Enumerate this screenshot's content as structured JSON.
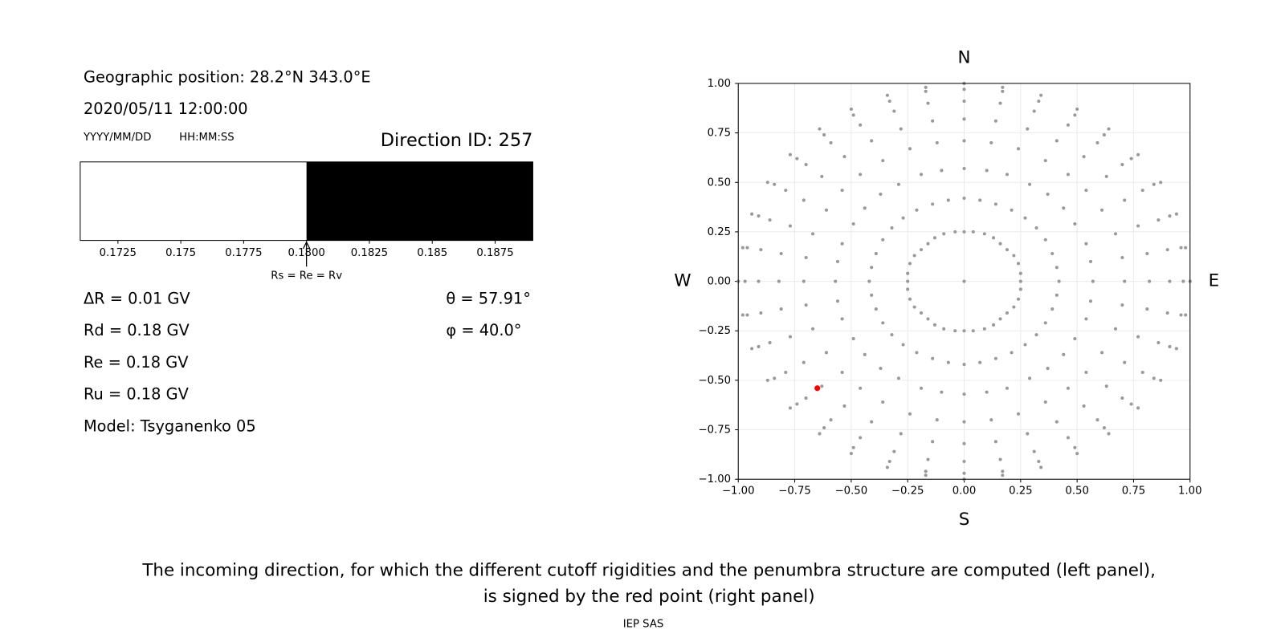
{
  "info": {
    "position": "Geographic position: 28.2°N 343.0°E",
    "datetime": "2020/05/11 12:00:00",
    "date_format": "YYYY/MM/DD",
    "time_format": "HH:MM:SS",
    "direction": "Direction ID: 257",
    "rigidities": [
      "ΔR = 0.01 GV",
      "Rd = 0.18 GV",
      "Re = 0.18 GV",
      "Ru = 0.18 GV",
      "Model: Tsyganenko 05"
    ],
    "angles": [
      "θ = 57.91°",
      "φ = 40.0°"
    ]
  },
  "chart_data": [
    {
      "type": "penumbra",
      "xlim": [
        0.171,
        0.189
      ],
      "xticks": [
        0.1725,
        0.175,
        0.1775,
        {
          "value": 0.18,
          "label": "0.1800"
        },
        0.1825,
        0.185,
        0.1875
      ],
      "segments": [
        {
          "start": 0.171,
          "end": 0.18,
          "color": "#ffffff"
        },
        {
          "start": 0.18,
          "end": 0.189,
          "color": "#000000"
        }
      ],
      "annotation": {
        "text": "Rs = Re = Rv",
        "x": 0.18
      }
    },
    {
      "type": "scatter",
      "xlim": [
        -1,
        1
      ],
      "ylim": [
        -1,
        1
      ],
      "xticks": [
        {
          "value": -1,
          "label": "−1.00"
        },
        {
          "value": -0.75,
          "label": "−0.75"
        },
        {
          "value": -0.5,
          "label": "−0.50"
        },
        {
          "value": -0.25,
          "label": "−0.25"
        },
        {
          "value": 0,
          "label": "0.00"
        },
        {
          "value": 0.25,
          "label": "0.25"
        },
        {
          "value": 0.5,
          "label": "0.50"
        },
        {
          "value": 0.75,
          "label": "0.75"
        },
        {
          "value": 1,
          "label": "1.00"
        }
      ],
      "yticks": [
        {
          "value": -1,
          "label": "−1.00"
        },
        {
          "value": -0.75,
          "label": "−0.75"
        },
        {
          "value": -0.5,
          "label": "−0.50"
        },
        {
          "value": -0.25,
          "label": "−0.25"
        },
        {
          "value": 0,
          "label": "0.00"
        },
        {
          "value": 0.25,
          "label": "0.25"
        },
        {
          "value": 0.5,
          "label": "0.50"
        },
        {
          "value": 0.75,
          "label": "0.75"
        },
        {
          "value": 1,
          "label": "1.00"
        }
      ],
      "grid": true,
      "compass": {
        "top": "N",
        "bottom": "S",
        "left": "W",
        "right": "E"
      },
      "series": [
        {
          "color": "#999999",
          "x": [
            0.25,
            0.42,
            0.57,
            0.71,
            0.82,
            0.91,
            0.97,
            1,
            0.25,
            0.41,
            0.56,
            0.7,
            0.81,
            0.9,
            0.96,
            0.98,
            0.24,
            0.39,
            0.54,
            0.67,
            0.77,
            0.86,
            0.91,
            0.94,
            0.22,
            0.36,
            0.49,
            0.61,
            0.71,
            0.79,
            0.84,
            0.87,
            0.19,
            0.32,
            0.44,
            0.54,
            0.63,
            0.7,
            0.74,
            0.77,
            0.16,
            0.27,
            0.37,
            0.46,
            0.53,
            0.59,
            0.62,
            0.64,
            0.13,
            0.21,
            0.29,
            0.36,
            0.41,
            0.46,
            0.49,
            0.5,
            0.09,
            0.14,
            0.19,
            0.24,
            0.28,
            0.31,
            0.33,
            0.34,
            0.04,
            0.07,
            0.1,
            0.12,
            0.14,
            0.16,
            0.17,
            0.17,
            0,
            0,
            0,
            0,
            0,
            0,
            0,
            0,
            -0.04,
            -0.07,
            -0.1,
            -0.12,
            -0.14,
            -0.16,
            -0.17,
            -0.17,
            -0.09,
            -0.14,
            -0.19,
            -0.24,
            -0.28,
            -0.31,
            -0.33,
            -0.34,
            -0.13,
            -0.21,
            -0.29,
            -0.36,
            -0.41,
            -0.46,
            -0.49,
            -0.5,
            -0.16,
            -0.27,
            -0.37,
            -0.46,
            -0.53,
            -0.59,
            -0.62,
            -0.64,
            -0.19,
            -0.32,
            -0.44,
            -0.54,
            -0.63,
            -0.7,
            -0.74,
            -0.77,
            -0.22,
            -0.36,
            -0.49,
            -0.61,
            -0.71,
            -0.79,
            -0.84,
            -0.87,
            -0.24,
            -0.39,
            -0.54,
            -0.67,
            -0.77,
            -0.86,
            -0.91,
            -0.94,
            -0.25,
            -0.41,
            -0.56,
            -0.7,
            -0.81,
            -0.9,
            -0.96,
            -0.98,
            -0.25,
            -0.42,
            -0.57,
            -0.71,
            -0.82,
            -0.91,
            -0.97,
            -1,
            -0.25,
            -0.41,
            -0.56,
            -0.7,
            -0.81,
            -0.9,
            -0.96,
            -0.98,
            -0.24,
            -0.39,
            -0.54,
            -0.67,
            -0.77,
            -0.86,
            -0.91,
            -0.94,
            -0.22,
            -0.36,
            -0.49,
            -0.61,
            -0.71,
            -0.79,
            -0.84,
            -0.87,
            -0.19,
            -0.32,
            -0.44,
            -0.54,
            -0.63,
            -0.7,
            -0.74,
            -0.77,
            -0.16,
            -0.27,
            -0.37,
            -0.46,
            -0.53,
            -0.59,
            -0.62,
            -0.64,
            -0.13,
            -0.21,
            -0.29,
            -0.36,
            -0.41,
            -0.46,
            -0.49,
            -0.5,
            -0.09,
            -0.14,
            -0.19,
            -0.24,
            -0.28,
            -0.31,
            -0.33,
            -0.34,
            -0.04,
            -0.07,
            -0.1,
            -0.12,
            -0.14,
            -0.16,
            -0.17,
            -0.17,
            0,
            0,
            0,
            0,
            0,
            0,
            0,
            0,
            0.04,
            0.07,
            0.1,
            0.12,
            0.14,
            0.16,
            0.17,
            0.17,
            0.09,
            0.14,
            0.19,
            0.24,
            0.28,
            0.31,
            0.33,
            0.34,
            0.13,
            0.21,
            0.29,
            0.36,
            0.41,
            0.46,
            0.49,
            0.5,
            0.16,
            0.27,
            0.37,
            0.46,
            0.53,
            0.59,
            0.62,
            0.64,
            0.19,
            0.32,
            0.44,
            0.54,
            0.63,
            0.7,
            0.74,
            0.77,
            0.22,
            0.36,
            0.49,
            0.61,
            0.71,
            0.79,
            0.84,
            0.87,
            0.24,
            0.39,
            0.54,
            0.67,
            0.77,
            0.86,
            0.91,
            0.94,
            0.25,
            0.41,
            0.56,
            0.7,
            0.81,
            0.9,
            0.96,
            0.98,
            0
          ],
          "y": [
            0,
            0,
            0,
            0,
            0,
            0,
            0,
            0,
            0.04,
            0.07,
            0.1,
            0.12,
            0.14,
            0.16,
            0.17,
            0.17,
            0.09,
            0.14,
            0.19,
            0.24,
            0.28,
            0.31,
            0.33,
            0.34,
            0.13,
            0.21,
            0.29,
            0.36,
            0.41,
            0.46,
            0.49,
            0.5,
            0.16,
            0.27,
            0.37,
            0.46,
            0.53,
            0.59,
            0.62,
            0.64,
            0.19,
            0.32,
            0.44,
            0.54,
            0.63,
            0.7,
            0.74,
            0.77,
            0.22,
            0.36,
            0.49,
            0.61,
            0.71,
            0.79,
            0.84,
            0.87,
            0.24,
            0.39,
            0.54,
            0.67,
            0.77,
            0.86,
            0.91,
            0.94,
            0.25,
            0.41,
            0.56,
            0.7,
            0.81,
            0.9,
            0.96,
            0.98,
            0.25,
            0.42,
            0.57,
            0.71,
            0.82,
            0.91,
            0.97,
            1,
            0.25,
            0.41,
            0.56,
            0.7,
            0.81,
            0.9,
            0.96,
            0.98,
            0.24,
            0.39,
            0.54,
            0.67,
            0.77,
            0.86,
            0.91,
            0.94,
            0.22,
            0.36,
            0.49,
            0.61,
            0.71,
            0.79,
            0.84,
            0.87,
            0.19,
            0.32,
            0.44,
            0.54,
            0.63,
            0.7,
            0.74,
            0.77,
            0.16,
            0.27,
            0.37,
            0.46,
            0.53,
            0.59,
            0.62,
            0.64,
            0.13,
            0.21,
            0.29,
            0.36,
            0.41,
            0.46,
            0.49,
            0.5,
            0.09,
            0.14,
            0.19,
            0.24,
            0.28,
            0.31,
            0.33,
            0.34,
            0.04,
            0.07,
            0.1,
            0.12,
            0.14,
            0.16,
            0.17,
            0.17,
            0,
            0,
            0,
            0,
            0,
            0,
            0,
            0,
            -0.04,
            -0.07,
            -0.1,
            -0.12,
            -0.14,
            -0.16,
            -0.17,
            -0.17,
            -0.09,
            -0.14,
            -0.19,
            -0.24,
            -0.28,
            -0.31,
            -0.33,
            -0.34,
            -0.13,
            -0.21,
            -0.29,
            -0.36,
            -0.41,
            -0.46,
            -0.49,
            -0.5,
            -0.16,
            -0.27,
            -0.37,
            -0.46,
            -0.53,
            -0.59,
            -0.62,
            -0.64,
            -0.19,
            -0.32,
            -0.44,
            -0.54,
            -0.63,
            -0.7,
            -0.74,
            -0.77,
            -0.22,
            -0.36,
            -0.49,
            -0.61,
            -0.71,
            -0.79,
            -0.84,
            -0.87,
            -0.24,
            -0.39,
            -0.54,
            -0.67,
            -0.77,
            -0.86,
            -0.91,
            -0.94,
            -0.25,
            -0.41,
            -0.56,
            -0.7,
            -0.81,
            -0.9,
            -0.96,
            -0.98,
            -0.25,
            -0.42,
            -0.57,
            -0.71,
            -0.82,
            -0.91,
            -0.97,
            -1,
            -0.25,
            -0.41,
            -0.56,
            -0.7,
            -0.81,
            -0.9,
            -0.96,
            -0.98,
            -0.24,
            -0.39,
            -0.54,
            -0.67,
            -0.77,
            -0.86,
            -0.91,
            -0.94,
            -0.22,
            -0.36,
            -0.49,
            -0.61,
            -0.71,
            -0.79,
            -0.84,
            -0.87,
            -0.19,
            -0.32,
            -0.44,
            -0.54,
            -0.63,
            -0.7,
            -0.74,
            -0.77,
            -0.16,
            -0.27,
            -0.37,
            -0.46,
            -0.53,
            -0.59,
            -0.62,
            -0.64,
            -0.13,
            -0.21,
            -0.29,
            -0.36,
            -0.41,
            -0.46,
            -0.49,
            -0.5,
            -0.09,
            -0.14,
            -0.19,
            -0.24,
            -0.28,
            -0.31,
            -0.33,
            -0.34,
            -0.04,
            -0.07,
            -0.1,
            -0.12,
            -0.14,
            -0.16,
            -0.17,
            -0.17,
            0
          ]
        },
        {
          "color": "#ff0000",
          "x": [
            -0.65
          ],
          "y": [
            -0.54
          ]
        }
      ]
    }
  ],
  "caption": [
    "The incoming direction, for which the different cutoff rigidities and the penumbra structure are computed (left panel),",
    "is signed by the red point (right panel)"
  ],
  "footer": "IEP SAS"
}
